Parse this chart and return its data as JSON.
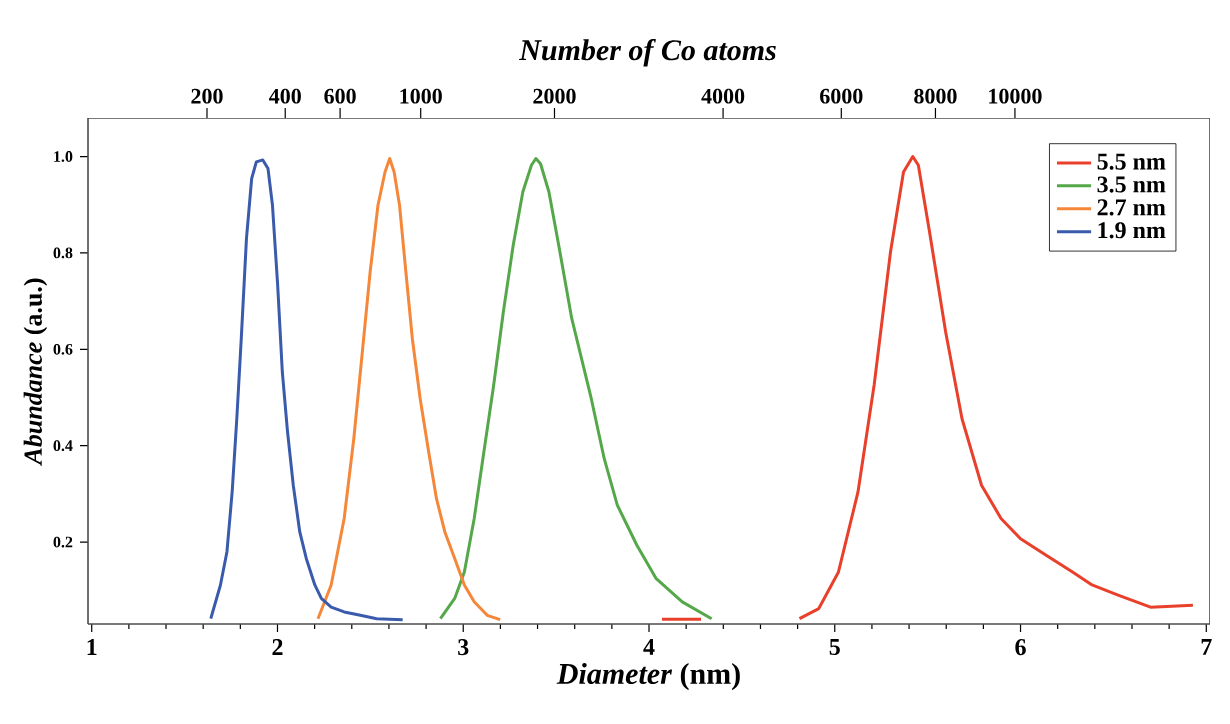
{
  "chart_data": {
    "type": "line",
    "xlabel": "*Diameter* (nm)",
    "ylabel": "*Abundance* (a.u.)",
    "x2label": "Number of Co atoms",
    "xlim": [
      0.98,
      7.02
    ],
    "xticks": [
      1,
      2,
      3,
      4,
      5,
      6,
      7
    ],
    "ylim": [
      0.03,
      1.08
    ],
    "yticks": [
      0.2,
      0.4,
      0.6,
      0.8,
      {
        "value": 1.0,
        "label": "1.0"
      }
    ],
    "annotations": [
      "200",
      "400",
      "600",
      "1000",
      "2000",
      "4000",
      "6000",
      "8000",
      "10000"
    ],
    "legend": "top right",
    "series": [
      {
        "name": "5.5 nm",
        "color": "#e8402a",
        "x": [
          4.07,
          4.28,
          4.29,
          4.81,
          4.914,
          5.02,
          5.125,
          5.212,
          5.3,
          5.37,
          5.42,
          5.45,
          5.51,
          5.597,
          5.685,
          5.79,
          5.895,
          6.0,
          6.14,
          6.28,
          6.385,
          6.525,
          6.7,
          6.928
        ],
        "values": [
          0.04,
          0.04,
          null,
          0.041,
          0.062,
          0.138,
          0.304,
          0.526,
          0.802,
          0.968,
          1.0,
          0.982,
          0.844,
          0.636,
          0.456,
          0.318,
          0.249,
          0.207,
          0.172,
          0.138,
          0.111,
          0.09,
          0.065,
          0.069
        ]
      },
      {
        "name": "3.5 nm",
        "color": "#55a84a",
        "x": [
          2.877,
          2.954,
          3.006,
          3.059,
          3.111,
          3.164,
          3.216,
          3.269,
          3.321,
          3.367,
          3.391,
          3.416,
          3.461,
          3.514,
          3.584,
          3.689,
          3.759,
          3.829,
          3.934,
          4.039,
          4.179,
          4.337
        ],
        "values": [
          0.041,
          0.083,
          0.138,
          0.249,
          0.387,
          0.526,
          0.678,
          0.816,
          0.927,
          0.982,
          0.996,
          0.985,
          0.927,
          0.816,
          0.664,
          0.498,
          0.373,
          0.277,
          0.194,
          0.124,
          0.076,
          0.041
        ]
      },
      {
        "name": "2.7 nm",
        "color": "#f5873a",
        "x": [
          2.218,
          2.289,
          2.359,
          2.411,
          2.457,
          2.499,
          2.541,
          2.579,
          2.604,
          2.628,
          2.657,
          2.691,
          2.726,
          2.768,
          2.814,
          2.856,
          2.901,
          2.954,
          3.006,
          3.059,
          3.129,
          3.199
        ],
        "values": [
          0.041,
          0.111,
          0.249,
          0.415,
          0.595,
          0.761,
          0.899,
          0.968,
          0.996,
          0.968,
          0.899,
          0.761,
          0.622,
          0.498,
          0.387,
          0.29,
          0.221,
          0.166,
          0.111,
          0.076,
          0.048,
          0.039
        ]
      },
      {
        "name": "1.9 nm",
        "color": "#3a5bab",
        "x": [
          1.641,
          1.693,
          1.728,
          1.756,
          1.781,
          1.805,
          1.833,
          1.861,
          1.886,
          1.921,
          1.949,
          1.973,
          2.001,
          2.026,
          2.054,
          2.085,
          2.12,
          2.155,
          2.201,
          2.236,
          2.289,
          2.359,
          2.446,
          2.534,
          2.674
        ],
        "values": [
          0.041,
          0.111,
          0.18,
          0.304,
          0.456,
          0.622,
          0.83,
          0.954,
          0.989,
          0.993,
          0.975,
          0.899,
          0.733,
          0.553,
          0.429,
          0.318,
          0.221,
          0.166,
          0.111,
          0.083,
          0.065,
          0.055,
          0.048,
          0.041,
          0.039
        ]
      }
    ]
  }
}
